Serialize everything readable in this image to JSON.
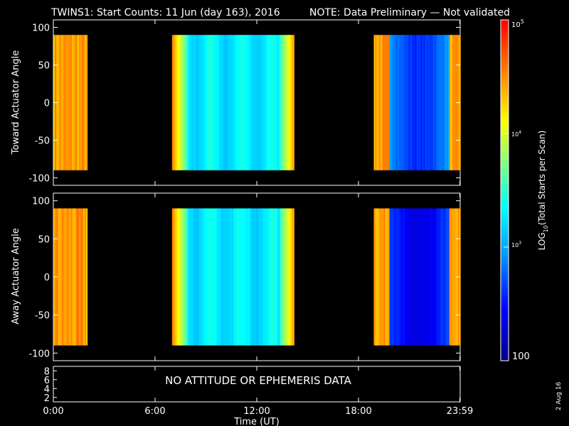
{
  "title": "TWINS1: Start Counts: 11 Jun (day 163), 2016",
  "note": "NOTE: Data Preliminary — Not validated",
  "note_color": "#ff2020",
  "stamp": "2 Aug 16",
  "chart_data": [
    {
      "type": "heatmap",
      "panel": "toward",
      "ylabel": "Toward Actuator Angle",
      "ylim": [
        -110,
        110
      ],
      "yticks": [
        "100",
        "50",
        "0",
        "-50",
        "-100"
      ],
      "angle_range": [
        -90,
        90
      ],
      "data_blocks_utc_hours": [
        [
          0.0,
          2.0
        ],
        [
          7.0,
          14.2
        ],
        [
          18.9,
          23.98
        ]
      ]
    },
    {
      "type": "heatmap",
      "panel": "away",
      "ylabel": "Away Actuator Angle",
      "ylim": [
        -110,
        110
      ],
      "yticks": [
        "100",
        "50",
        "0",
        "-50",
        "-100"
      ],
      "angle_range": [
        -90,
        90
      ],
      "data_blocks_utc_hours": [
        [
          0.0,
          2.0
        ],
        [
          7.0,
          14.2
        ],
        [
          18.9,
          23.98
        ]
      ]
    },
    {
      "type": "table",
      "panel": "ephemeris",
      "yticks": [
        "8",
        "6",
        "4",
        "2"
      ],
      "message": "NO ATTITUDE OR EPHEMERIS DATA"
    }
  ],
  "xaxis": {
    "label": "Time (UT)",
    "ticks": [
      "0:00",
      "6:00",
      "12:00",
      "18:00",
      "23:59"
    ]
  },
  "colorbar": {
    "label": "LOG10(Total Starts per Scan)",
    "label_base": "LOG",
    "label_sub": "10",
    "label_rest": "(Total Starts per Scan)",
    "ticks": [
      "10^5",
      "10^4",
      "10^3",
      "100"
    ],
    "tick_top": {
      "base": "10",
      "exp": "5"
    },
    "tick_2": {
      "base": "10",
      "exp": "4"
    },
    "tick_3": {
      "base": "10",
      "exp": "3"
    },
    "tick_bottom": "100",
    "range": [
      100,
      100000
    ],
    "scale": "log",
    "colormap": [
      "#00008b",
      "#0000ff",
      "#00a0ff",
      "#00ffff",
      "#80ff80",
      "#ffff00",
      "#ff8000",
      "#ff0000"
    ]
  }
}
